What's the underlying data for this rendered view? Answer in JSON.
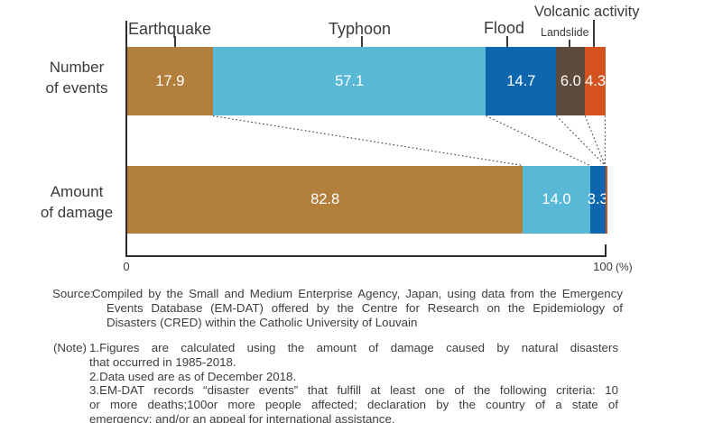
{
  "chart_data": {
    "type": "bar",
    "orientation": "horizontal-stacked",
    "value_unit": "%",
    "x_range": [
      0,
      100
    ],
    "grid": false,
    "legend": "labels-above-first-bar",
    "categories": [
      {
        "label": "Earthquake",
        "color": "#b2803c"
      },
      {
        "label": "Typhoon",
        "color": "#58b8d6"
      },
      {
        "label": "Flood",
        "color": "#0e67ae"
      },
      {
        "label": "Landslide",
        "color": "#5e4b3b"
      },
      {
        "label": "Volcanic activity",
        "color": "#d4521d"
      }
    ],
    "series": [
      {
        "name": "Number of events",
        "values": [
          17.9,
          57.1,
          14.7,
          6.0,
          4.3
        ]
      },
      {
        "name": "Amount of damage",
        "values": [
          82.8,
          14.0,
          3.3,
          0,
          0
        ]
      }
    ],
    "x_axis": {
      "min_label": "0",
      "max_label": "100",
      "unit_label": "(%)"
    }
  },
  "row_labels": {
    "events": [
      "Number",
      "of events"
    ],
    "damage": [
      "Amount",
      "of damage"
    ]
  },
  "source": {
    "prefix": "Source:",
    "lines": [
      "Compiled by the Small and Medium Enterprise Agency, Japan, using data from the Emergency",
      "Events Database (EM-DAT) offered by the Centre for Research on the Epidemiology of",
      "Disasters (CRED) within the Catholic University of Louvain"
    ]
  },
  "note": {
    "prefix": "(Note)",
    "lines": [
      "1.Figures are calculated using the amount of damage caused by natural disasters",
      "that occurred in 1985-2018.",
      "2.Data used are as of December 2018.",
      "3.EM-DAT records “disaster events” that fulfill at least one of the following criteria: 10",
      "or more deaths;100or more people affected; declaration by the country of a state of",
      "emergency; and/or an appeal for international assistance."
    ]
  }
}
